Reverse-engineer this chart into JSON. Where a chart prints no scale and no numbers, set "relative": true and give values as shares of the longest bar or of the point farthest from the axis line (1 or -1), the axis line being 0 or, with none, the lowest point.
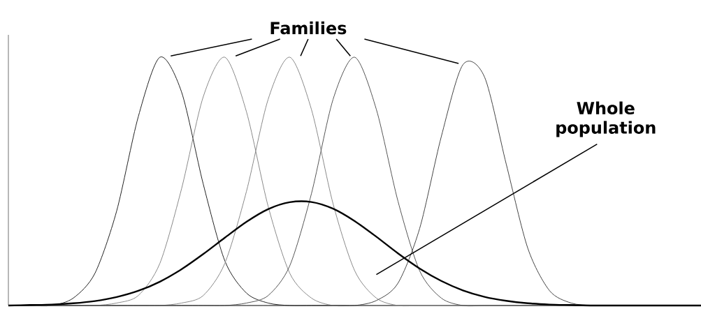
{
  "chart_data": {
    "type": "line",
    "relative": true,
    "marker": "none",
    "line_style": "solid",
    "categories": [
      null,
      null,
      null,
      null,
      null,
      null,
      null,
      null,
      null,
      null,
      null,
      null,
      null,
      null,
      null,
      null,
      null,
      null,
      null,
      null,
      null,
      null,
      null,
      null,
      null,
      null,
      null,
      null,
      null,
      null,
      null,
      null,
      null
    ],
    "series": [
      {
        "color": "#222222",
        "values": [
          0,
          0,
          0,
          0.03,
          0.13,
          0.38,
          0.76,
          1.0,
          0.86,
          0.49,
          0.18,
          0.05,
          0.01,
          0,
          0,
          0,
          0,
          0,
          0,
          0,
          0,
          0,
          0,
          0,
          0,
          0,
          0,
          0,
          0,
          0,
          0,
          0,
          0
        ]
      },
      {
        "color": "#8a8a8a",
        "values": [
          0,
          0,
          0,
          0,
          0,
          0.01,
          0.04,
          0.17,
          0.47,
          0.84,
          1.0,
          0.78,
          0.4,
          0.13,
          0.03,
          0,
          0,
          0,
          0,
          0,
          0,
          0,
          0,
          0,
          0,
          0,
          0,
          0,
          0,
          0,
          0,
          0,
          0
        ]
      },
      {
        "color": "#8a8a8a",
        "values": [
          0,
          0,
          0,
          0,
          0,
          0,
          0,
          0,
          0.01,
          0.04,
          0.17,
          0.46,
          0.83,
          1.0,
          0.79,
          0.41,
          0.14,
          0.03,
          0,
          0,
          0,
          0,
          0,
          0,
          0,
          0,
          0,
          0,
          0,
          0,
          0,
          0,
          0
        ]
      },
      {
        "color": "#555555",
        "values": [
          0,
          0,
          0,
          0,
          0,
          0,
          0,
          0,
          0,
          0,
          0,
          0.01,
          0.04,
          0.16,
          0.45,
          0.83,
          1.0,
          0.79,
          0.42,
          0.14,
          0.03,
          0,
          0,
          0,
          0,
          0,
          0,
          0,
          0,
          0,
          0,
          0,
          0
        ]
      },
      {
        "color": "#444444",
        "values": [
          0,
          0,
          0,
          0,
          0,
          0,
          0,
          0,
          0,
          0,
          0,
          0,
          0,
          0,
          0,
          0,
          0,
          0.02,
          0.09,
          0.31,
          0.68,
          0.97,
          0.92,
          0.57,
          0.23,
          0.06,
          0.01,
          0,
          0,
          0,
          0,
          0,
          0
        ]
      },
      {
        "color": "#000000",
        "values": [
          0,
          0.002,
          0.004,
          0.009,
          0.018,
          0.034,
          0.059,
          0.096,
          0.146,
          0.207,
          0.273,
          0.337,
          0.388,
          0.416,
          0.417,
          0.39,
          0.34,
          0.277,
          0.21,
          0.149,
          0.099,
          0.061,
          0.035,
          0.019,
          0.009,
          0.004,
          0.002,
          0,
          0,
          0,
          0,
          0,
          0
        ]
      }
    ],
    "annotations": [
      "Families",
      "Whole population"
    ]
  }
}
